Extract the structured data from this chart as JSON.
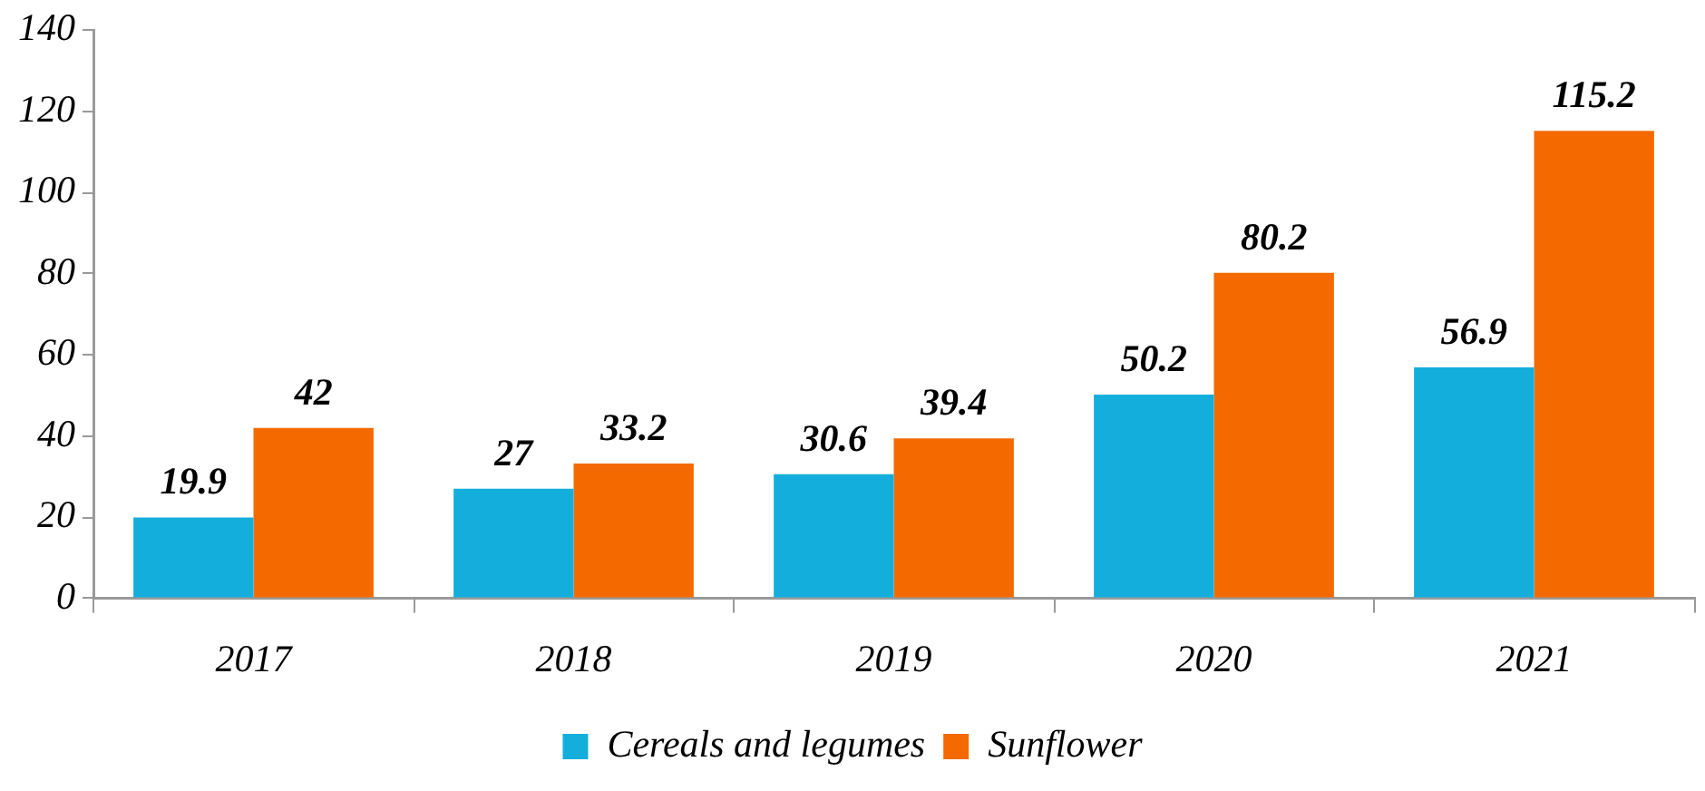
{
  "chart_data": {
    "type": "bar",
    "categories": [
      "2017",
      "2018",
      "2019",
      "2020",
      "2021"
    ],
    "series": [
      {
        "name": "Cereals and legumes",
        "color": "#14aedc",
        "values": [
          19.9,
          27,
          30.6,
          50.2,
          56.9
        ]
      },
      {
        "name": "Sunflower",
        "color": "#f56a00",
        "values": [
          42,
          33.2,
          39.4,
          80.2,
          115.2
        ]
      }
    ],
    "ylim": [
      0,
      140
    ],
    "yticks": [
      0,
      20,
      40,
      60,
      80,
      100,
      120,
      140
    ],
    "data_labels": true,
    "legend": "bottom"
  }
}
